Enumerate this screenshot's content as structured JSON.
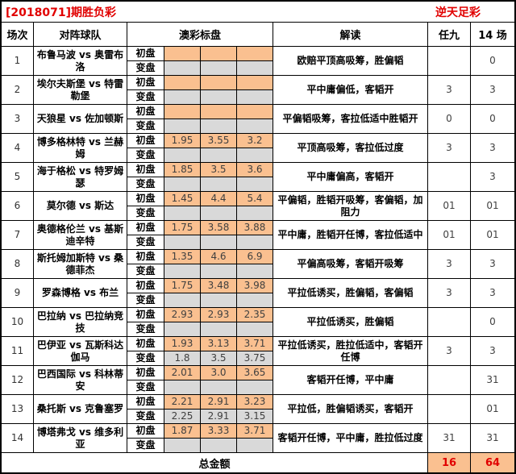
{
  "title": {
    "left": "[2018071]期胜负彩",
    "right": "逆天足彩"
  },
  "columns": {
    "match": "场次",
    "teams": "对阵球队",
    "odds_board": "澳彩标盘",
    "interpretation": "解读",
    "ren9": "任九",
    "m14": "14 场"
  },
  "row_labels": {
    "open": "初盘",
    "change": "变盘"
  },
  "footer": {
    "label": "总金额",
    "ren9_total": "16",
    "m14_total": "64"
  },
  "colors": {
    "accent_red": "#e10000",
    "open_cell_bg": "#FAC090",
    "change_cell_bg": "#D9D9D9"
  },
  "rows": [
    {
      "num": "1",
      "teams": "布鲁马波 vs 奥雷布洛",
      "open": [
        "",
        "",
        ""
      ],
      "change": [
        "",
        "",
        ""
      ],
      "interpretation": "欧赔平顶高吸筹，胜偏韬",
      "ren9": "",
      "m14": "0"
    },
    {
      "num": "2",
      "teams": "埃尔夫斯堡 vs 特雷勒堡",
      "open": [
        "",
        "",
        ""
      ],
      "change": [
        "",
        "",
        ""
      ],
      "interpretation": "平中庸偏低，客韬开",
      "ren9": "3",
      "m14": "3"
    },
    {
      "num": "3",
      "teams": "天狼星 vs 佐加顿斯",
      "open": [
        "",
        "",
        ""
      ],
      "change": [
        "",
        "",
        ""
      ],
      "interpretation": "平偏韬吸筹，客拉低适中胜韬开",
      "ren9": "0",
      "m14": "0"
    },
    {
      "num": "4",
      "teams": "博多格林特 vs 兰赫姆",
      "open": [
        "1.95",
        "3.55",
        "3.2"
      ],
      "change": [
        "",
        "",
        ""
      ],
      "interpretation": "平顶高吸筹，客拉低过度",
      "ren9": "3",
      "m14": "3"
    },
    {
      "num": "5",
      "teams": "海于格松 vs 特罗姆瑟",
      "open": [
        "1.85",
        "3.5",
        "3.6"
      ],
      "change": [
        "",
        "",
        ""
      ],
      "interpretation": "平中庸偏高，客韬开",
      "ren9": "",
      "m14": "3"
    },
    {
      "num": "6",
      "teams": "莫尔德 vs 斯达",
      "open": [
        "1.45",
        "4.4",
        "5.4"
      ],
      "change": [
        "",
        "",
        ""
      ],
      "interpretation": "平偏韬，胜韬开吸筹，客偏韬，加阻力",
      "ren9": "01",
      "m14": "01"
    },
    {
      "num": "7",
      "teams": "奥德格伦兰 vs 基斯迪辛特",
      "open": [
        "1.75",
        "3.58",
        "3.88"
      ],
      "change": [
        "",
        "",
        ""
      ],
      "interpretation": "平中庸，胜韬开任博，客拉低适中",
      "ren9": "01",
      "m14": "01"
    },
    {
      "num": "8",
      "teams": "斯托姆加斯特 vs 桑德菲杰",
      "open": [
        "1.35",
        "4.6",
        "6.9"
      ],
      "change": [
        "",
        "",
        ""
      ],
      "interpretation": "平偏高吸筹，客韬开吸筹",
      "ren9": "3",
      "m14": "3"
    },
    {
      "num": "9",
      "teams": "罗森博格 vs 布兰",
      "open": [
        "1.75",
        "3.48",
        "3.98"
      ],
      "change": [
        "",
        "",
        ""
      ],
      "interpretation": "平拉低诱买，胜偏韬，客偏韬",
      "ren9": "3",
      "m14": "3"
    },
    {
      "num": "10",
      "teams": "巴拉纳 vs 巴拉纳竞技",
      "open": [
        "2.93",
        "2.93",
        "2.35"
      ],
      "change": [
        "",
        "",
        ""
      ],
      "interpretation": "平拉低诱买，胜偏韬",
      "ren9": "",
      "m14": "0"
    },
    {
      "num": "11",
      "teams": "巴伊亚 vs 瓦斯科达伽马",
      "open": [
        "1.93",
        "3.13",
        "3.71"
      ],
      "change": [
        "1.8",
        "3.5",
        "3.75"
      ],
      "interpretation": "平拉低诱买，胜拉低适中，客韬开任博",
      "ren9": "3",
      "m14": "3"
    },
    {
      "num": "12",
      "teams": "巴西国际 vs 科林蒂安",
      "open": [
        "2.01",
        "3.0",
        "3.65"
      ],
      "change": [
        "",
        "",
        ""
      ],
      "interpretation": "客韬开任博，平中庸",
      "ren9": "",
      "m14": "31"
    },
    {
      "num": "13",
      "teams": "桑托斯 vs 克鲁塞罗",
      "open": [
        "2.21",
        "2.91",
        "3.23"
      ],
      "change": [
        "2.25",
        "2.91",
        "3.15"
      ],
      "interpretation": "平拉低，胜偏韬诱买，客韬开",
      "ren9": "",
      "m14": "01"
    },
    {
      "num": "14",
      "teams": "博塔弗戈 vs 维多利亚",
      "open": [
        "1.87",
        "3.33",
        "3.71"
      ],
      "change": [
        "",
        "",
        ""
      ],
      "interpretation": "客韬开任博，平中庸，胜拉低过度",
      "ren9": "31",
      "m14": "31"
    }
  ]
}
